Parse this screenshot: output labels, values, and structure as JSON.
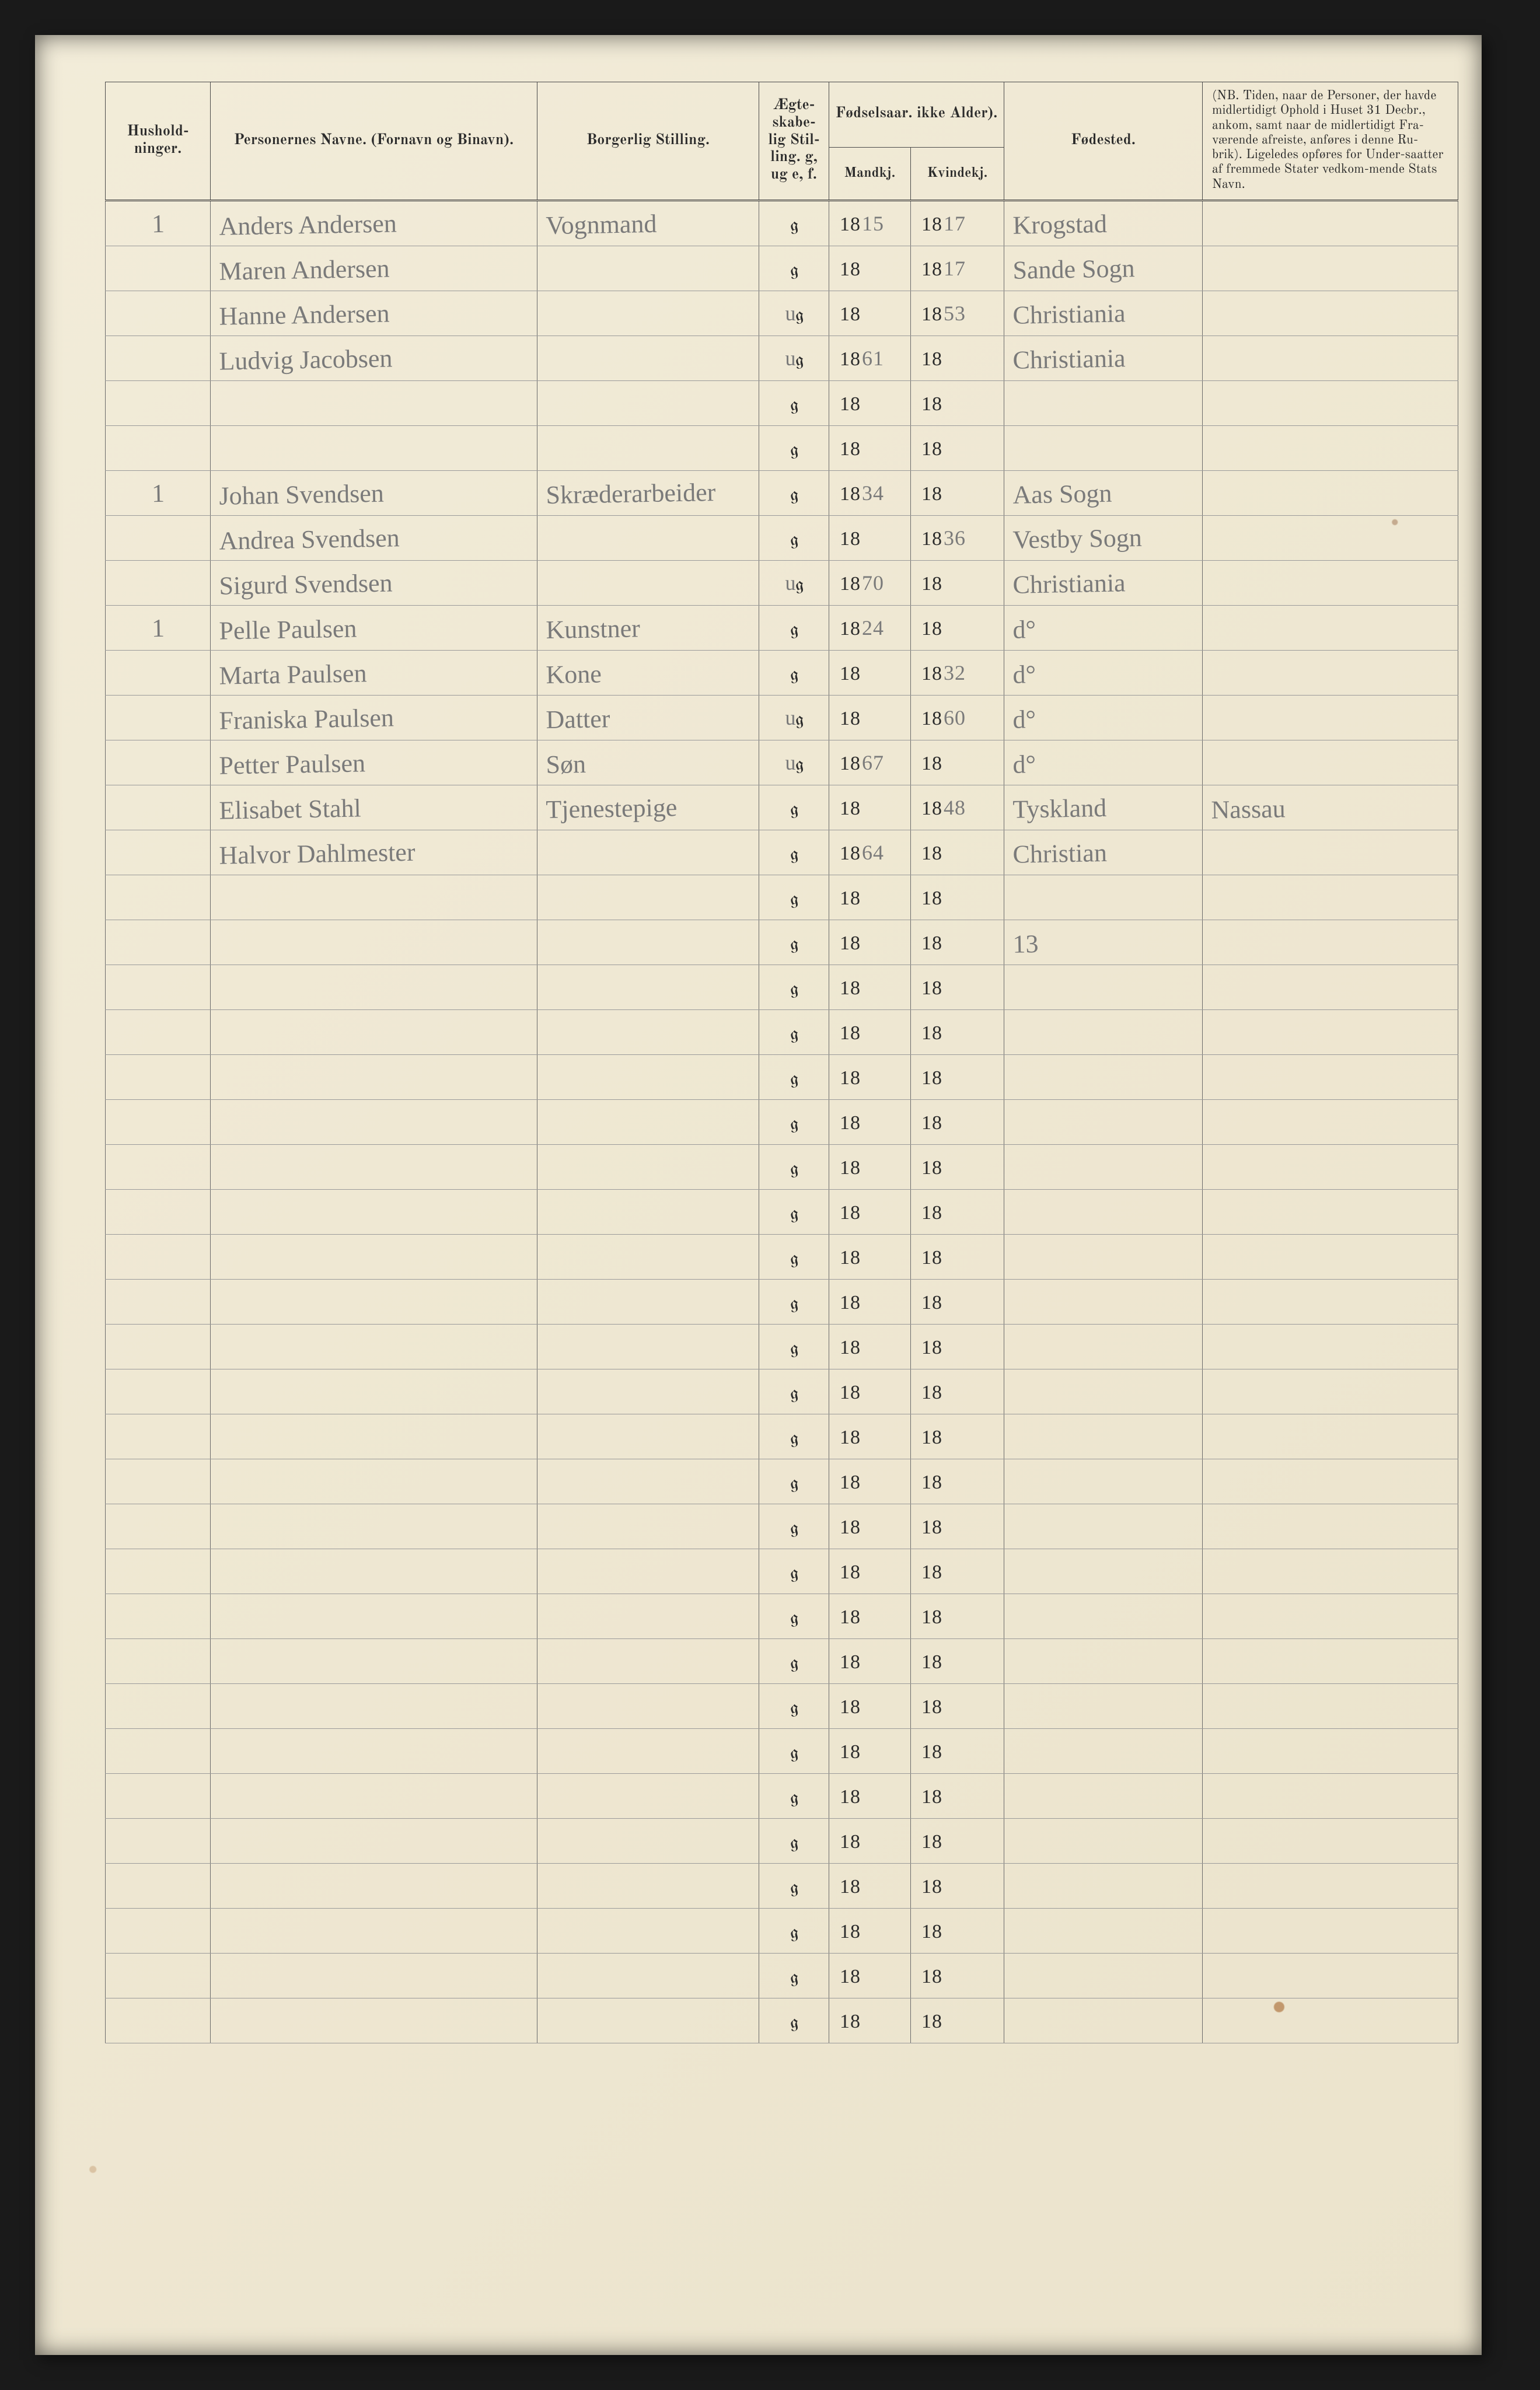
{
  "page": {
    "background_color": "#1a1a1a",
    "paper_color_top": "#f2ecd9",
    "paper_color_bottom": "#ebe3cc",
    "rule_color": "#6a6a6a",
    "printed_ink": "#2b2b2b",
    "pencil_ink": "#7a7a7a"
  },
  "headers": {
    "hushold": "Hushold-\nninger.",
    "navne": "Personernes Navne.\n(Fornavn og Binavn).",
    "stilling": "Borgerlig Stilling.",
    "egte": "Ægte-\nskabe-\nlig\nStil-\nling.\ng, ug\ne, f.",
    "fodselsaar": "Fødselsaar.\nikke Alder).",
    "mandkj": "Mandkj.",
    "kvindkj": "Kvindekj.",
    "fodested": "Fødested.",
    "nb": "(NB. Tiden, naar de Personer, der havde midlertidigt Ophold i Huset 31 Decbr., ankom, samt naar de midlertidigt Fra-værende afreiste, anføres i denne Ru-brik). Ligeledes opføres for Under-saatter af fremmede Stater vedkom-mende Stats Navn."
  },
  "printed": {
    "g": "g",
    "eighteen": "18"
  },
  "rows": [
    {
      "hush": "1",
      "navn": "Anders Andersen",
      "stilling": "Vognmand",
      "egte_prefix": "",
      "mand_suffix": "15",
      "kvind_suffix": "17",
      "fodested": "Krogstad",
      "nb": ""
    },
    {
      "hush": "",
      "navn": "Maren Andersen",
      "stilling": "",
      "egte_prefix": "",
      "mand_suffix": "",
      "kvind_suffix": "17",
      "fodested": "Sande Sogn",
      "nb": ""
    },
    {
      "hush": "",
      "navn": "Hanne Andersen",
      "stilling": "",
      "egte_prefix": "u",
      "mand_suffix": "",
      "kvind_suffix": "53",
      "fodested": "Christiania",
      "nb": ""
    },
    {
      "hush": "",
      "navn": "Ludvig Jacobsen",
      "stilling": "",
      "egte_prefix": "u",
      "mand_suffix": "61",
      "kvind_suffix": "",
      "fodested": "Christiania",
      "nb": ""
    },
    {
      "hush": "",
      "navn": "",
      "stilling": "",
      "egte_prefix": "",
      "mand_suffix": "",
      "kvind_suffix": "",
      "fodested": "",
      "nb": ""
    },
    {
      "hush": "",
      "navn": "",
      "stilling": "",
      "egte_prefix": "",
      "mand_suffix": "",
      "kvind_suffix": "",
      "fodested": "",
      "nb": ""
    },
    {
      "hush": "1",
      "navn": "Johan Svendsen",
      "stilling": "Skræderarbeider",
      "egte_prefix": "",
      "mand_suffix": "34",
      "kvind_suffix": "",
      "fodested": "Aas Sogn",
      "nb": ""
    },
    {
      "hush": "",
      "navn": "Andrea Svendsen",
      "stilling": "",
      "egte_prefix": "",
      "mand_suffix": "",
      "kvind_suffix": "36",
      "fodested": "Vestby Sogn",
      "nb": ""
    },
    {
      "hush": "",
      "navn": "Sigurd Svendsen",
      "stilling": "",
      "egte_prefix": "u",
      "mand_suffix": "70",
      "kvind_suffix": "",
      "fodested": "Christiania",
      "nb": ""
    },
    {
      "hush": "1",
      "navn": "Pelle Paulsen",
      "stilling": "Kunstner",
      "egte_prefix": "",
      "mand_suffix": "24",
      "kvind_suffix": "",
      "fodested": "d°",
      "nb": ""
    },
    {
      "hush": "",
      "navn": "Marta Paulsen",
      "stilling": "Kone",
      "egte_prefix": "",
      "mand_suffix": "",
      "kvind_suffix": "32",
      "fodested": "d°",
      "nb": ""
    },
    {
      "hush": "",
      "navn": "Franiska Paulsen",
      "stilling": "Datter",
      "egte_prefix": "u",
      "mand_suffix": "",
      "kvind_suffix": "60",
      "fodested": "d°",
      "nb": ""
    },
    {
      "hush": "",
      "navn": "Petter Paulsen",
      "stilling": "Søn",
      "egte_prefix": "u",
      "mand_suffix": "67",
      "kvind_suffix": "",
      "fodested": "d°",
      "nb": ""
    },
    {
      "hush": "",
      "navn": "Elisabet Stahl",
      "stilling": "Tjenestepige",
      "egte_prefix": "",
      "mand_suffix": "",
      "kvind_suffix": "48",
      "fodested": "Tyskland",
      "nb": "Nassau"
    },
    {
      "hush": "",
      "navn": "Halvor Dahlmester",
      "stilling": "",
      "egte_prefix": "",
      "mand_suffix": "64",
      "kvind_suffix": "",
      "fodested": "Christian",
      "nb": ""
    },
    {
      "hush": "",
      "navn": "",
      "stilling": "",
      "egte_prefix": "",
      "mand_suffix": "",
      "kvind_suffix": "",
      "fodested": "",
      "nb": ""
    },
    {
      "hush": "",
      "navn": "",
      "stilling": "",
      "egte_prefix": "",
      "mand_suffix": "",
      "kvind_suffix": "",
      "fodested": "13",
      "nb": ""
    },
    {
      "hush": "",
      "navn": "",
      "stilling": "",
      "egte_prefix": "",
      "mand_suffix": "",
      "kvind_suffix": "",
      "fodested": "",
      "nb": ""
    },
    {
      "hush": "",
      "navn": "",
      "stilling": "",
      "egte_prefix": "",
      "mand_suffix": "",
      "kvind_suffix": "",
      "fodested": "",
      "nb": ""
    },
    {
      "hush": "",
      "navn": "",
      "stilling": "",
      "egte_prefix": "",
      "mand_suffix": "",
      "kvind_suffix": "",
      "fodested": "",
      "nb": ""
    },
    {
      "hush": "",
      "navn": "",
      "stilling": "",
      "egte_prefix": "",
      "mand_suffix": "",
      "kvind_suffix": "",
      "fodested": "",
      "nb": ""
    },
    {
      "hush": "",
      "navn": "",
      "stilling": "",
      "egte_prefix": "",
      "mand_suffix": "",
      "kvind_suffix": "",
      "fodested": "",
      "nb": ""
    },
    {
      "hush": "",
      "navn": "",
      "stilling": "",
      "egte_prefix": "",
      "mand_suffix": "",
      "kvind_suffix": "",
      "fodested": "",
      "nb": ""
    },
    {
      "hush": "",
      "navn": "",
      "stilling": "",
      "egte_prefix": "",
      "mand_suffix": "",
      "kvind_suffix": "",
      "fodested": "",
      "nb": ""
    },
    {
      "hush": "",
      "navn": "",
      "stilling": "",
      "egte_prefix": "",
      "mand_suffix": "",
      "kvind_suffix": "",
      "fodested": "",
      "nb": ""
    },
    {
      "hush": "",
      "navn": "",
      "stilling": "",
      "egte_prefix": "",
      "mand_suffix": "",
      "kvind_suffix": "",
      "fodested": "",
      "nb": ""
    },
    {
      "hush": "",
      "navn": "",
      "stilling": "",
      "egte_prefix": "",
      "mand_suffix": "",
      "kvind_suffix": "",
      "fodested": "",
      "nb": ""
    },
    {
      "hush": "",
      "navn": "",
      "stilling": "",
      "egte_prefix": "",
      "mand_suffix": "",
      "kvind_suffix": "",
      "fodested": "",
      "nb": ""
    },
    {
      "hush": "",
      "navn": "",
      "stilling": "",
      "egte_prefix": "",
      "mand_suffix": "",
      "kvind_suffix": "",
      "fodested": "",
      "nb": ""
    },
    {
      "hush": "",
      "navn": "",
      "stilling": "",
      "egte_prefix": "",
      "mand_suffix": "",
      "kvind_suffix": "",
      "fodested": "",
      "nb": ""
    },
    {
      "hush": "",
      "navn": "",
      "stilling": "",
      "egte_prefix": "",
      "mand_suffix": "",
      "kvind_suffix": "",
      "fodested": "",
      "nb": ""
    },
    {
      "hush": "",
      "navn": "",
      "stilling": "",
      "egte_prefix": "",
      "mand_suffix": "",
      "kvind_suffix": "",
      "fodested": "",
      "nb": ""
    },
    {
      "hush": "",
      "navn": "",
      "stilling": "",
      "egte_prefix": "",
      "mand_suffix": "",
      "kvind_suffix": "",
      "fodested": "",
      "nb": ""
    },
    {
      "hush": "",
      "navn": "",
      "stilling": "",
      "egte_prefix": "",
      "mand_suffix": "",
      "kvind_suffix": "",
      "fodested": "",
      "nb": ""
    },
    {
      "hush": "",
      "navn": "",
      "stilling": "",
      "egte_prefix": "",
      "mand_suffix": "",
      "kvind_suffix": "",
      "fodested": "",
      "nb": ""
    },
    {
      "hush": "",
      "navn": "",
      "stilling": "",
      "egte_prefix": "",
      "mand_suffix": "",
      "kvind_suffix": "",
      "fodested": "",
      "nb": ""
    },
    {
      "hush": "",
      "navn": "",
      "stilling": "",
      "egte_prefix": "",
      "mand_suffix": "",
      "kvind_suffix": "",
      "fodested": "",
      "nb": ""
    },
    {
      "hush": "",
      "navn": "",
      "stilling": "",
      "egte_prefix": "",
      "mand_suffix": "",
      "kvind_suffix": "",
      "fodested": "",
      "nb": ""
    },
    {
      "hush": "",
      "navn": "",
      "stilling": "",
      "egte_prefix": "",
      "mand_suffix": "",
      "kvind_suffix": "",
      "fodested": "",
      "nb": ""
    },
    {
      "hush": "",
      "navn": "",
      "stilling": "",
      "egte_prefix": "",
      "mand_suffix": "",
      "kvind_suffix": "",
      "fodested": "",
      "nb": ""
    },
    {
      "hush": "",
      "navn": "",
      "stilling": "",
      "egte_prefix": "",
      "mand_suffix": "",
      "kvind_suffix": "",
      "fodested": "",
      "nb": ""
    }
  ]
}
